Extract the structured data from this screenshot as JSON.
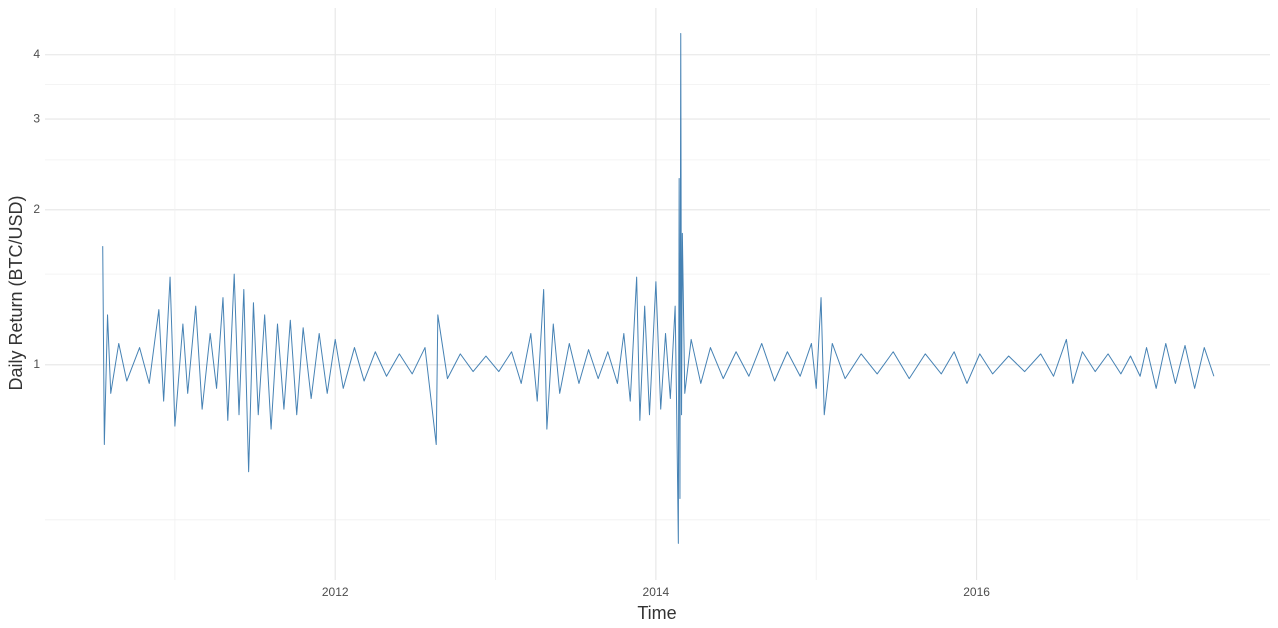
{
  "chart_data": {
    "type": "line",
    "x_label": "Time",
    "y_label": "Daily Return (BTC/USD)",
    "color": "#4682b4",
    "y_log": true,
    "grid": true,
    "xlim": [
      2010.19,
      2017.83
    ],
    "ylim": [
      0.382,
      4.93
    ],
    "xticks": [
      {
        "value": 2011,
        "label": null
      },
      2012,
      {
        "value": 2013,
        "label": null
      },
      2014,
      {
        "value": 2015,
        "label": null
      },
      2016,
      {
        "value": 2017,
        "label": null
      }
    ],
    "yticks": [
      {
        "value": 0.5,
        "label": null
      },
      1,
      {
        "value": 1.5,
        "label": null
      },
      2,
      {
        "value": 2.5,
        "label": null
      },
      3,
      {
        "value": 3.5,
        "label": null
      },
      4
    ],
    "x": [
      2010.55,
      2010.56,
      2010.58,
      2010.6,
      2010.65,
      2010.7,
      2010.78,
      2010.84,
      2010.9,
      2010.93,
      2010.97,
      2011,
      2011.05,
      2011.08,
      2011.13,
      2011.17,
      2011.22,
      2011.26,
      2011.3,
      2011.33,
      2011.37,
      2011.4,
      2011.43,
      2011.46,
      2011.49,
      2011.52,
      2011.56,
      2011.6,
      2011.64,
      2011.68,
      2011.72,
      2011.76,
      2011.8,
      2011.85,
      2011.9,
      2011.95,
      2012,
      2012.05,
      2012.12,
      2012.18,
      2012.25,
      2012.32,
      2012.4,
      2012.48,
      2012.56,
      2012.63,
      2012.64,
      2012.7,
      2012.78,
      2012.86,
      2012.94,
      2013.02,
      2013.1,
      2013.16,
      2013.22,
      2013.26,
      2013.3,
      2013.32,
      2013.36,
      2013.4,
      2013.46,
      2013.52,
      2013.58,
      2013.64,
      2013.7,
      2013.76,
      2013.8,
      2013.84,
      2013.88,
      2013.9,
      2013.93,
      2013.96,
      2014,
      2014.03,
      2014.06,
      2014.09,
      2014.12,
      2014.13,
      2014.14,
      2014.145,
      2014.15,
      2014.155,
      2014.16,
      2014.165,
      2014.18,
      2014.22,
      2014.28,
      2014.34,
      2014.42,
      2014.5,
      2014.58,
      2014.66,
      2014.74,
      2014.82,
      2014.9,
      2014.97,
      2015,
      2015.03,
      2015.05,
      2015.1,
      2015.18,
      2015.28,
      2015.38,
      2015.48,
      2015.58,
      2015.68,
      2015.78,
      2015.86,
      2015.94,
      2016.02,
      2016.1,
      2016.2,
      2016.3,
      2016.4,
      2016.48,
      2016.56,
      2016.6,
      2016.66,
      2016.74,
      2016.82,
      2016.9,
      2016.96,
      2017.02,
      2017.06,
      2017.12,
      2017.18,
      2017.24,
      2017.3,
      2017.36,
      2017.42,
      2017.48
    ],
    "values": [
      1.7,
      0.7,
      1.25,
      0.88,
      1.1,
      0.93,
      1.08,
      0.92,
      1.28,
      0.85,
      1.48,
      0.76,
      1.2,
      0.88,
      1.3,
      0.82,
      1.15,
      0.9,
      1.35,
      0.78,
      1.5,
      0.8,
      1.4,
      0.62,
      1.32,
      0.8,
      1.25,
      0.75,
      1.2,
      0.82,
      1.22,
      0.8,
      1.18,
      0.86,
      1.15,
      0.88,
      1.12,
      0.9,
      1.08,
      0.93,
      1.06,
      0.95,
      1.05,
      0.96,
      1.08,
      0.7,
      1.25,
      0.94,
      1.05,
      0.97,
      1.04,
      0.97,
      1.06,
      0.92,
      1.15,
      0.85,
      1.4,
      0.75,
      1.2,
      0.88,
      1.1,
      0.92,
      1.07,
      0.94,
      1.06,
      0.92,
      1.15,
      0.85,
      1.48,
      0.78,
      1.3,
      0.8,
      1.45,
      0.82,
      1.15,
      0.86,
      1.3,
      0.8,
      0.45,
      2.3,
      0.55,
      4.4,
      0.8,
      1.8,
      0.88,
      1.12,
      0.92,
      1.08,
      0.94,
      1.06,
      0.95,
      1.1,
      0.93,
      1.06,
      0.95,
      1.1,
      0.9,
      1.35,
      0.8,
      1.1,
      0.94,
      1.05,
      0.96,
      1.06,
      0.94,
      1.05,
      0.96,
      1.06,
      0.92,
      1.05,
      0.96,
      1.04,
      0.97,
      1.05,
      0.95,
      1.12,
      0.92,
      1.06,
      0.97,
      1.05,
      0.96,
      1.04,
      0.95,
      1.08,
      0.9,
      1.1,
      0.92,
      1.09,
      0.9,
      1.08,
      0.95
    ]
  }
}
